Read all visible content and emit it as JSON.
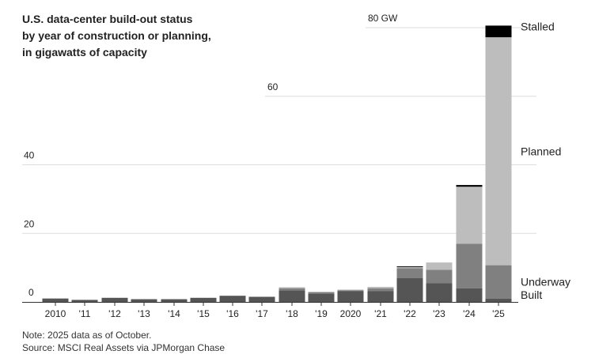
{
  "title_lines": [
    "U.S. data-center build-out status",
    "by year of construction or planning,",
    "in gigawatts of capacity"
  ],
  "note": "Note: 2025 data as of October.",
  "source": "Source: MSCI Real Assets via JPMorgan Chase",
  "colors": {
    "built": "#555555",
    "underway": "#808080",
    "planned": "#bdbdbd",
    "stalled": "#000000",
    "grid": "#dddddd"
  },
  "chart_data": {
    "type": "bar",
    "stacked": true,
    "categories": [
      "2010",
      "'11",
      "'12",
      "'13",
      "'14",
      "'15",
      "'16",
      "'17",
      "'18",
      "'19",
      "2020",
      "'21",
      "'22",
      "'23",
      "'24",
      "'25"
    ],
    "series": [
      {
        "name": "Built",
        "values": [
          1.0,
          0.6,
          1.2,
          0.8,
          0.8,
          1.2,
          1.8,
          1.5,
          3.4,
          2.4,
          3.2,
          3.2,
          7.0,
          5.5,
          4.0,
          1.0
        ]
      },
      {
        "name": "Underway",
        "values": [
          0,
          0,
          0,
          0,
          0,
          0,
          0,
          0,
          0.6,
          0.4,
          0.3,
          0.8,
          2.8,
          3.9,
          13.0,
          9.7
        ]
      },
      {
        "name": "Planned",
        "values": [
          0,
          0,
          0,
          0,
          0,
          0,
          0,
          0,
          0.3,
          0.2,
          0.1,
          0.4,
          0.4,
          2.1,
          16.6,
          66.5
        ]
      },
      {
        "name": "Stalled",
        "values": [
          0,
          0,
          0,
          0,
          0,
          0,
          0,
          0,
          0,
          0,
          0,
          0,
          0.2,
          0,
          0.5,
          3.4
        ]
      }
    ],
    "ylim": [
      0,
      80
    ],
    "yticks": [
      0,
      20,
      40,
      60,
      80
    ],
    "ytick_labels": [
      "0",
      "20",
      "40",
      "60",
      "80 GW"
    ],
    "grid": true,
    "legend": "labels at right of final bar"
  }
}
